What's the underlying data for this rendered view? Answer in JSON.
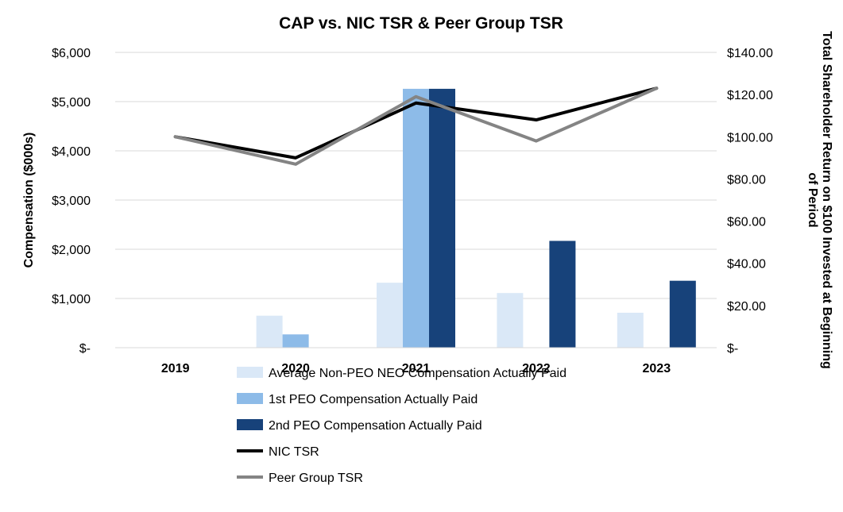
{
  "chart_data": {
    "type": "bar",
    "title": "CAP vs. NIC TSR & Peer Group TSR",
    "categories": [
      "2019",
      "2020",
      "2021",
      "2022",
      "2023"
    ],
    "ylabel": "Compensation ($000s)",
    "y2label_line1": "Total Shareholder Return on $100 Invested at Beginning",
    "y2label_line2": "of Period",
    "ylim": [
      0,
      6000
    ],
    "y2lim": [
      0,
      140
    ],
    "y_ticks": [
      0,
      1000,
      2000,
      3000,
      4000,
      5000,
      6000
    ],
    "y_tick_labels": [
      "$-",
      "$1,000",
      "$2,000",
      "$3,000",
      "$4,000",
      "$5,000",
      "$6,000"
    ],
    "y2_ticks": [
      0,
      20,
      40,
      60,
      80,
      100,
      120,
      140
    ],
    "y2_tick_labels": [
      "$-",
      "$20.00",
      "$40.00",
      "$60.00",
      "$80.00",
      "$100.00",
      "$120.00",
      "$140.00"
    ],
    "grid": true,
    "legend_position": "bottom",
    "bar_series": [
      {
        "name": "Average Non-PEO NEO Compensation Actually Paid",
        "color": "#dae8f7",
        "values": [
          0,
          650,
          1320,
          1110,
          710
        ]
      },
      {
        "name": "1st PEO Compensation Actually Paid",
        "color": "#8dbbe8",
        "values": [
          0,
          270,
          5260,
          0,
          0
        ]
      },
      {
        "name": "2nd PEO Compensation Actually Paid",
        "color": "#17427a",
        "values": [
          0,
          0,
          5260,
          2170,
          1360
        ]
      }
    ],
    "line_series": [
      {
        "name": "NIC TSR",
        "color": "#000000",
        "values": [
          100,
          90,
          116,
          108,
          123
        ]
      },
      {
        "name": "Peer Group TSR",
        "color": "#848484",
        "values": [
          100,
          87,
          119,
          98,
          123
        ]
      }
    ]
  }
}
